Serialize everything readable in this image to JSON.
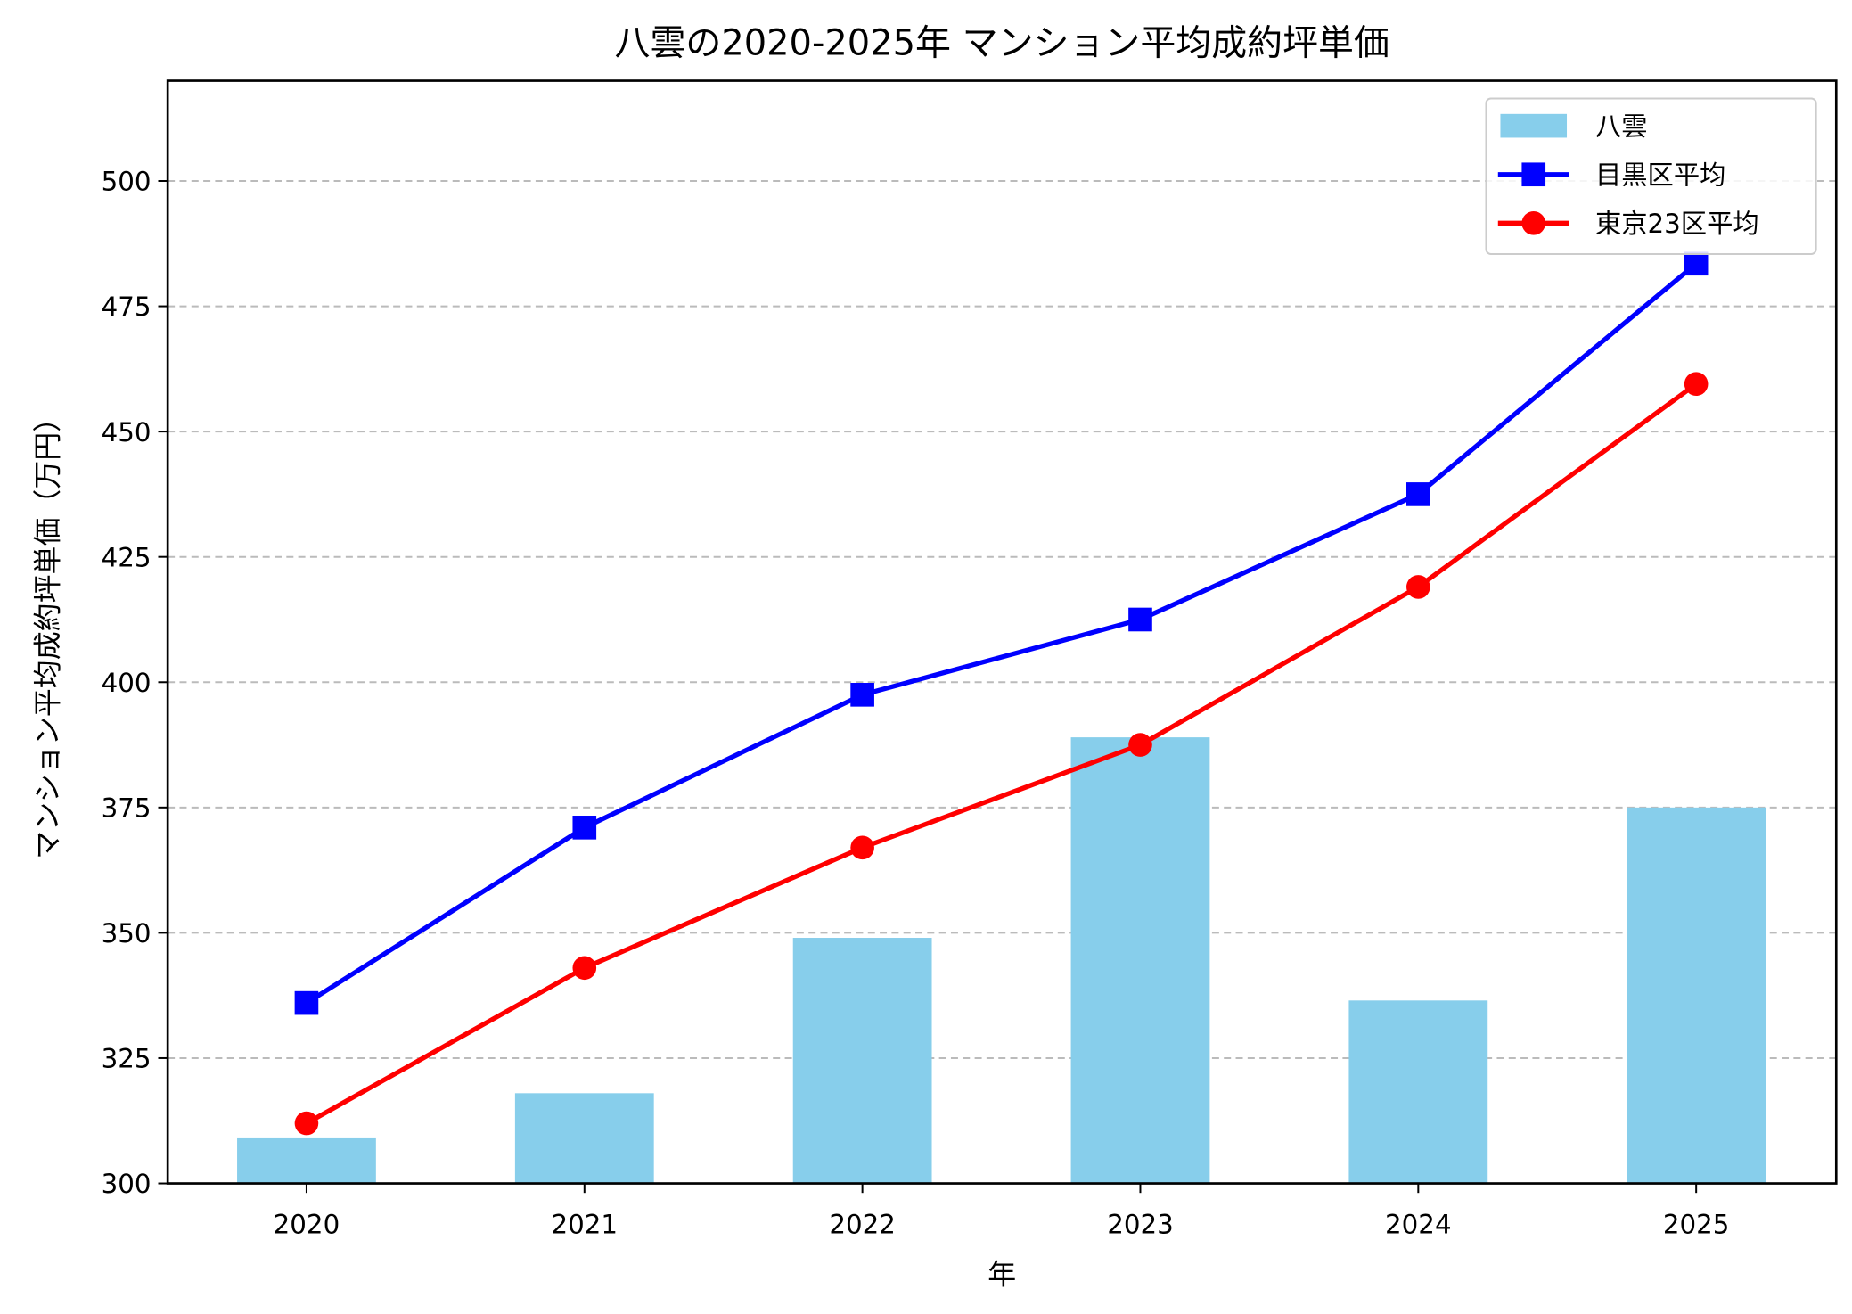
{
  "chart_data": {
    "type": "bar",
    "title": "八雲の2020-2025年 マンション平均成約坪単価",
    "xlabel": "年",
    "ylabel": "マンション平均成約坪単価（万円）",
    "categories": [
      "2020",
      "2021",
      "2022",
      "2023",
      "2024",
      "2025"
    ],
    "ylim": [
      300,
      520
    ],
    "yticks": [
      300,
      325,
      350,
      375,
      400,
      425,
      450,
      475,
      500
    ],
    "grid": "y-dashed",
    "legend_position": "top-right",
    "series": [
      {
        "name": "八雲",
        "kind": "bar",
        "color": "#87CEEB",
        "values": [
          309,
          318,
          349,
          389,
          336.5,
          375
        ]
      },
      {
        "name": "目黒区平均",
        "kind": "line",
        "marker": "square",
        "color": "#0000FF",
        "values": [
          336,
          371,
          397.5,
          412.5,
          437.5,
          483.5
        ]
      },
      {
        "name": "東京23区平均",
        "kind": "line",
        "marker": "circle",
        "color": "#FF0000",
        "values": [
          312,
          343,
          367,
          387.5,
          419,
          459.5
        ]
      }
    ]
  }
}
